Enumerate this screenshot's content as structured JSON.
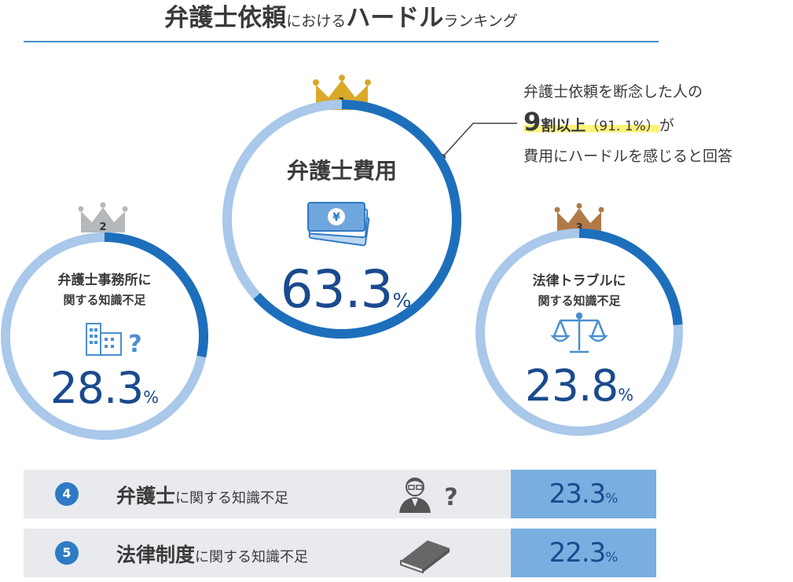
{
  "title": {
    "part1": "弁護士依頼",
    "part2": "における",
    "part3": "ハードル",
    "part4": "ランキング"
  },
  "note": {
    "line1": "弁護士依頼を断念した人の",
    "line2_big": "9",
    "line2_mid": "割以上",
    "line2_paren": "（91. 1%）",
    "line2_end": "が",
    "line3": "費用にハードルを感じると回答"
  },
  "percent_sign": "%",
  "chart_data": {
    "type": "donut-ranking",
    "title": "弁護士依頼におけるハードルランキング",
    "unit": "%",
    "items": [
      {
        "rank": "1",
        "label": "弁護士費用",
        "label_lines": [
          "弁護士費用"
        ],
        "value": 63.3,
        "display": "63.3",
        "crown_color": "#d9a928",
        "icon": "yen-bills-icon"
      },
      {
        "rank": "2",
        "label": "弁護士事務所に関する知識不足",
        "label_lines": [
          "弁護士事務所に",
          "関する知識不足"
        ],
        "value": 28.3,
        "display": "28.3",
        "crown_color": "#b5b8bb",
        "icon": "office-building-question-icon"
      },
      {
        "rank": "3",
        "label": "法律トラブルに関する知識不足",
        "label_lines": [
          "法律トラブルに",
          "関する知識不足"
        ],
        "value": 23.8,
        "display": "23.8",
        "crown_color": "#b07a48",
        "icon": "scales-icon"
      }
    ],
    "rows": [
      {
        "rank": "4",
        "label_bold": "弁護士",
        "label_rest": "に関する知識不足",
        "value": 23.3,
        "display": "23.3",
        "icon": "lawyer-question-icon"
      },
      {
        "rank": "5",
        "label_bold": "法律制度",
        "label_rest": "に関する知識不足",
        "value": 22.3,
        "display": "22.3",
        "icon": "book-icon"
      }
    ],
    "colors": {
      "ring_track": "#a9c8ea",
      "ring_fill": "#1d6fbc",
      "value_text": "#1a4a8e",
      "row_value_bg": "#79aee0"
    }
  }
}
